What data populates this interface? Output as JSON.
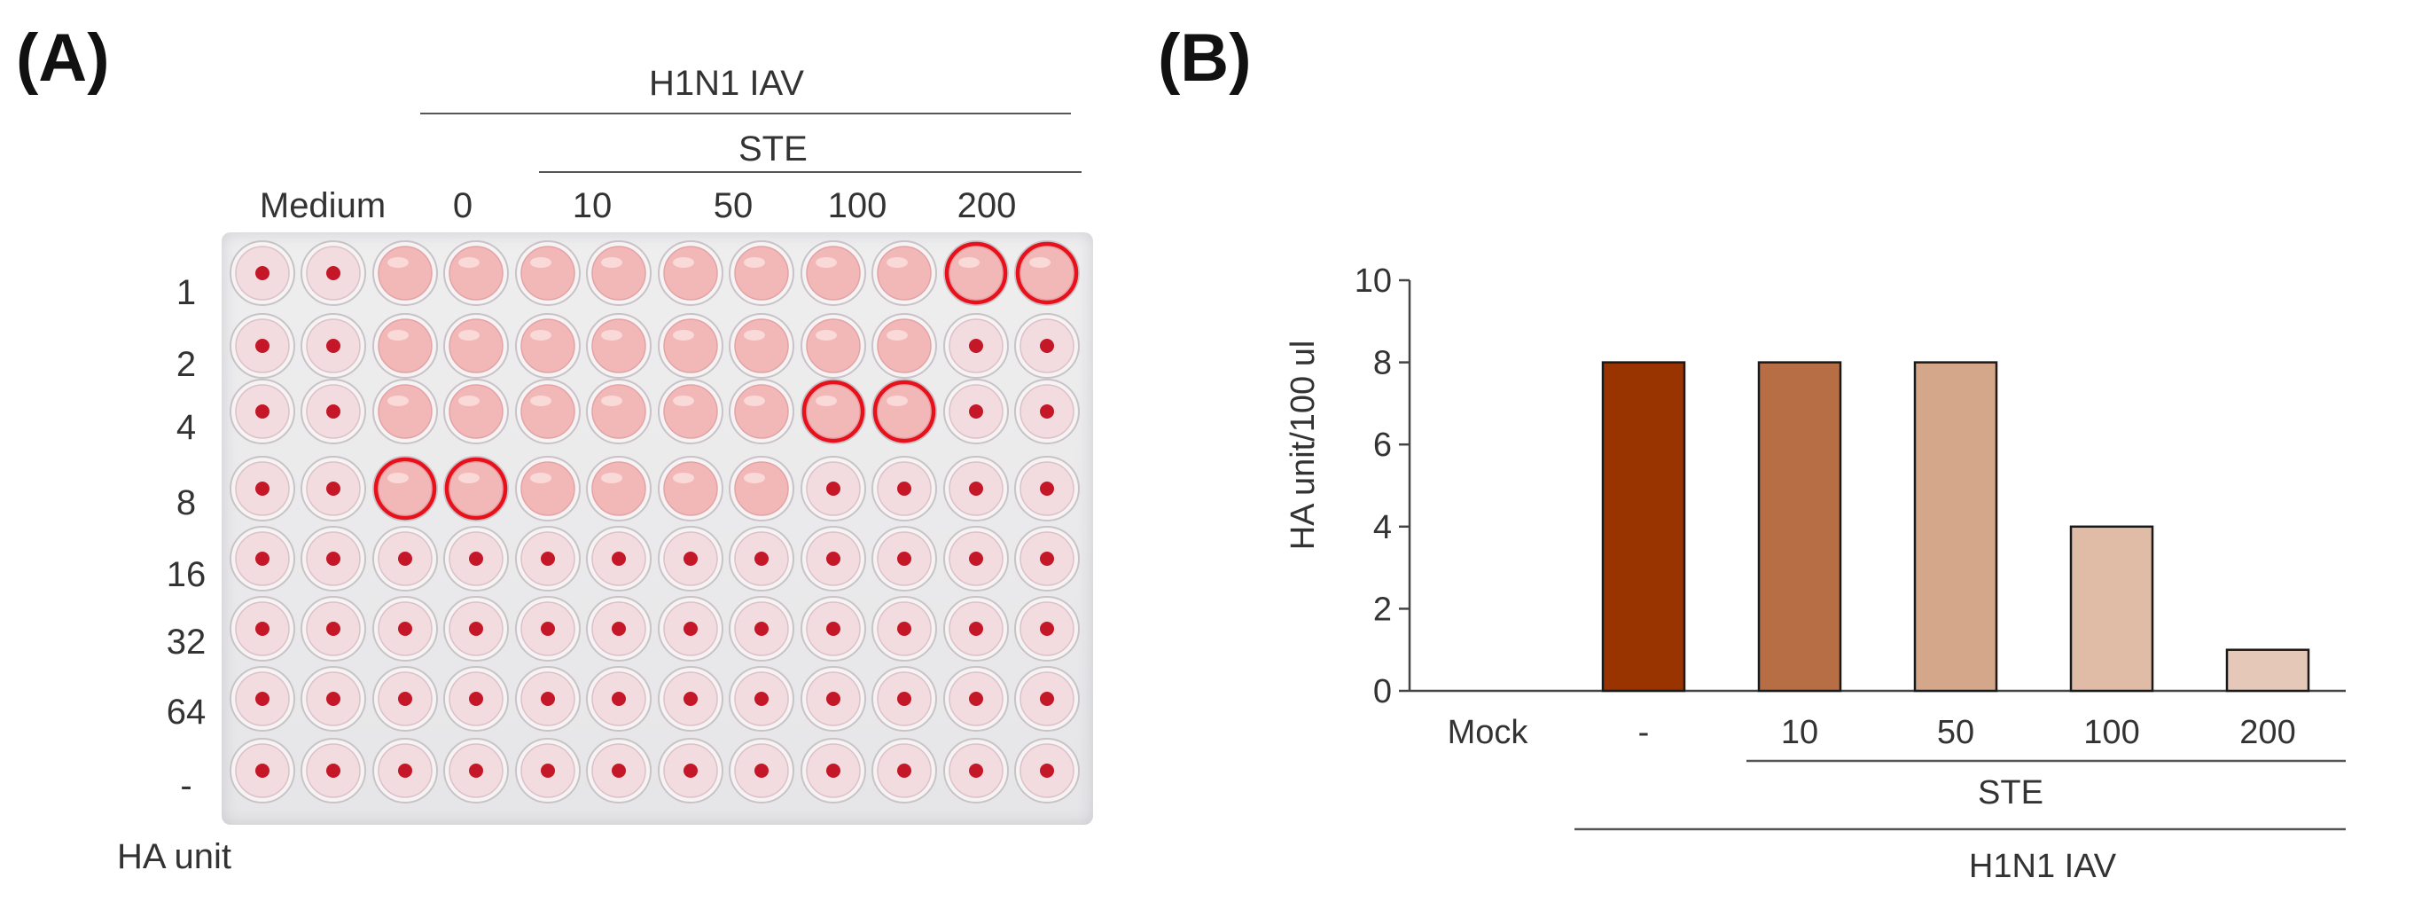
{
  "panelA": {
    "label": "(A)",
    "virus_label": "H1N1 IAV",
    "treatment_label": "STE",
    "column_labels": [
      "Medium",
      "0",
      "10",
      "50",
      "100",
      "200"
    ],
    "row_labels": [
      "1",
      "2",
      "4",
      "8",
      "16",
      "32",
      "64",
      "-"
    ],
    "row_axis_label": "HA unit",
    "plate": {
      "rows": 8,
      "cols": 12,
      "circled_wells": [
        [
          0,
          10
        ],
        [
          0,
          11
        ],
        [
          2,
          8
        ],
        [
          2,
          9
        ],
        [
          3,
          2
        ],
        [
          3,
          3
        ]
      ],
      "hemagglutination_rows_by_group": {
        "Medium": 0,
        "0": 4,
        "10": 4,
        "50": 4,
        "100": 3,
        "200": 1
      },
      "colors": {
        "agglutinated": "#f2b8b8",
        "button": "#c41828",
        "circle": "#e8101a"
      }
    }
  },
  "panelB": {
    "label": "(B)",
    "chart_data": {
      "type": "bar",
      "categories": [
        "Mock",
        "-",
        "10",
        "50",
        "100",
        "200"
      ],
      "values": [
        0,
        8,
        8,
        8,
        4,
        1
      ],
      "bar_colors": [
        "#ffffff",
        "#993300",
        "#b86e45",
        "#d4a68a",
        "#e0bba6",
        "#e5c8b8"
      ],
      "ylabel": "HA unit/100 ul",
      "ylim": [
        0,
        10
      ],
      "yticks": [
        "0",
        "2",
        "4",
        "6",
        "8",
        "10"
      ],
      "group_labels": {
        "treatment": "STE",
        "virus": "H1N1 IAV"
      }
    }
  }
}
